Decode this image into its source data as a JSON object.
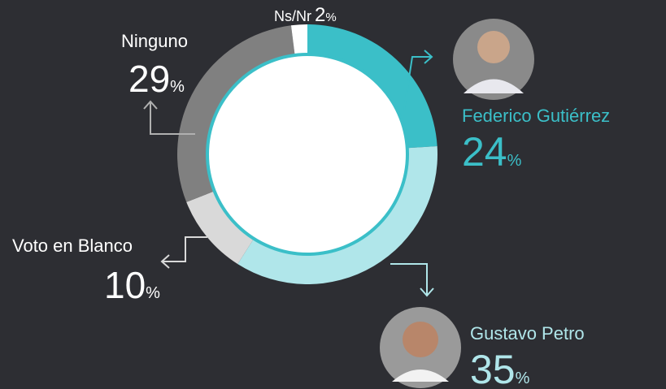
{
  "chart_data": {
    "type": "donut",
    "categories": [
      "Federico Gutiérrez",
      "Gustavo Petro",
      "Voto en Blanco",
      "Ninguno",
      "Ns/Nr"
    ],
    "values": [
      24,
      35,
      10,
      29,
      2
    ],
    "colors": [
      "#3bbfc8",
      "#b0e6ea",
      "#d9d9d9",
      "#808080",
      "#ffffff"
    ],
    "unit": "%"
  }
}
